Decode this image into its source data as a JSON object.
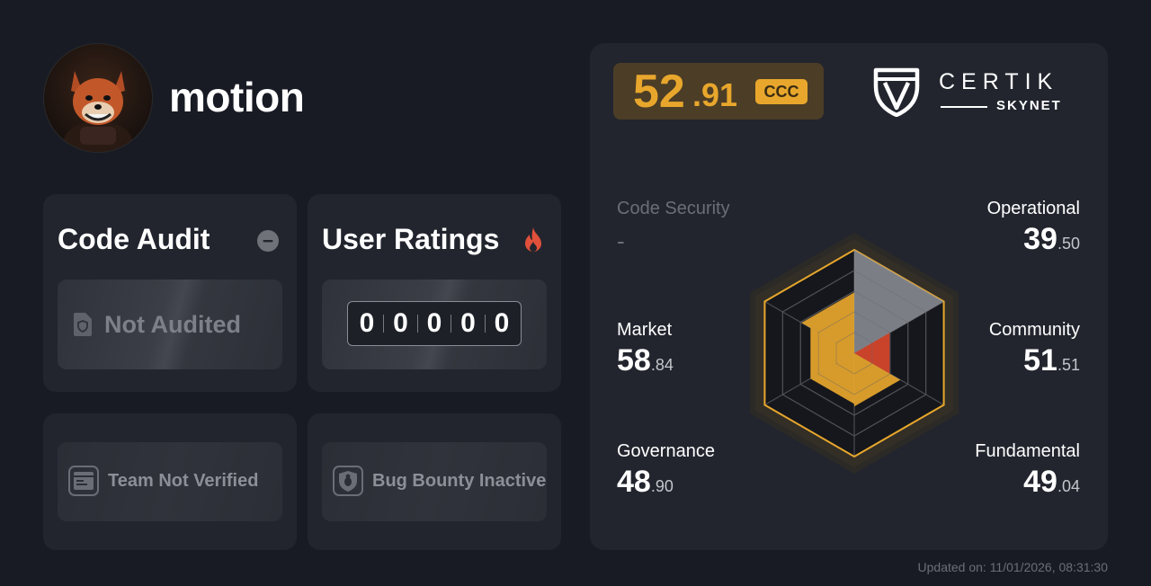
{
  "project": {
    "name": "motion",
    "avatar_icon": "shiba-avatar-icon"
  },
  "code_audit": {
    "title": "Code Audit",
    "status_icon": "minus-circle-icon",
    "status": "Not Audited",
    "status_item_icon": "document-shield-icon"
  },
  "user_ratings": {
    "title": "User Ratings",
    "icon": "fire-icon",
    "digits": [
      "0",
      "0",
      "0",
      "0",
      "0"
    ]
  },
  "team": {
    "label": "Team Not Verified",
    "icon": "id-card-icon"
  },
  "bug_bounty": {
    "label": "Bug Bounty Inactive",
    "icon": "bug-shield-icon"
  },
  "score": {
    "integer": "52",
    "decimal": ".91",
    "grade": "CCC",
    "accent_color": "#e8a72c"
  },
  "brand": {
    "name": "CERTIK",
    "sub": "SKYNET",
    "logo_icon": "certik-shield-icon"
  },
  "metrics": {
    "code_security": {
      "label": "Code Security",
      "value": "-"
    },
    "operational": {
      "label": "Operational",
      "integer": "39",
      "decimal": ".50"
    },
    "community": {
      "label": "Community",
      "integer": "51",
      "decimal": ".51"
    },
    "fundamental": {
      "label": "Fundamental",
      "integer": "49",
      "decimal": ".04"
    },
    "governance": {
      "label": "Governance",
      "integer": "48",
      "decimal": ".90"
    },
    "market": {
      "label": "Market",
      "integer": "58",
      "decimal": ".84"
    }
  },
  "chart_data": {
    "type": "radar",
    "categories": [
      "Code Security",
      "Operational",
      "Community",
      "Fundamental",
      "Governance",
      "Market"
    ],
    "values": [
      null,
      39.5,
      51.51,
      49.04,
      48.9,
      58.84
    ],
    "range": [
      0,
      100
    ],
    "overall_score": 52.91
  },
  "updated": "Updated on: 11/01/2026, 08:31:30"
}
